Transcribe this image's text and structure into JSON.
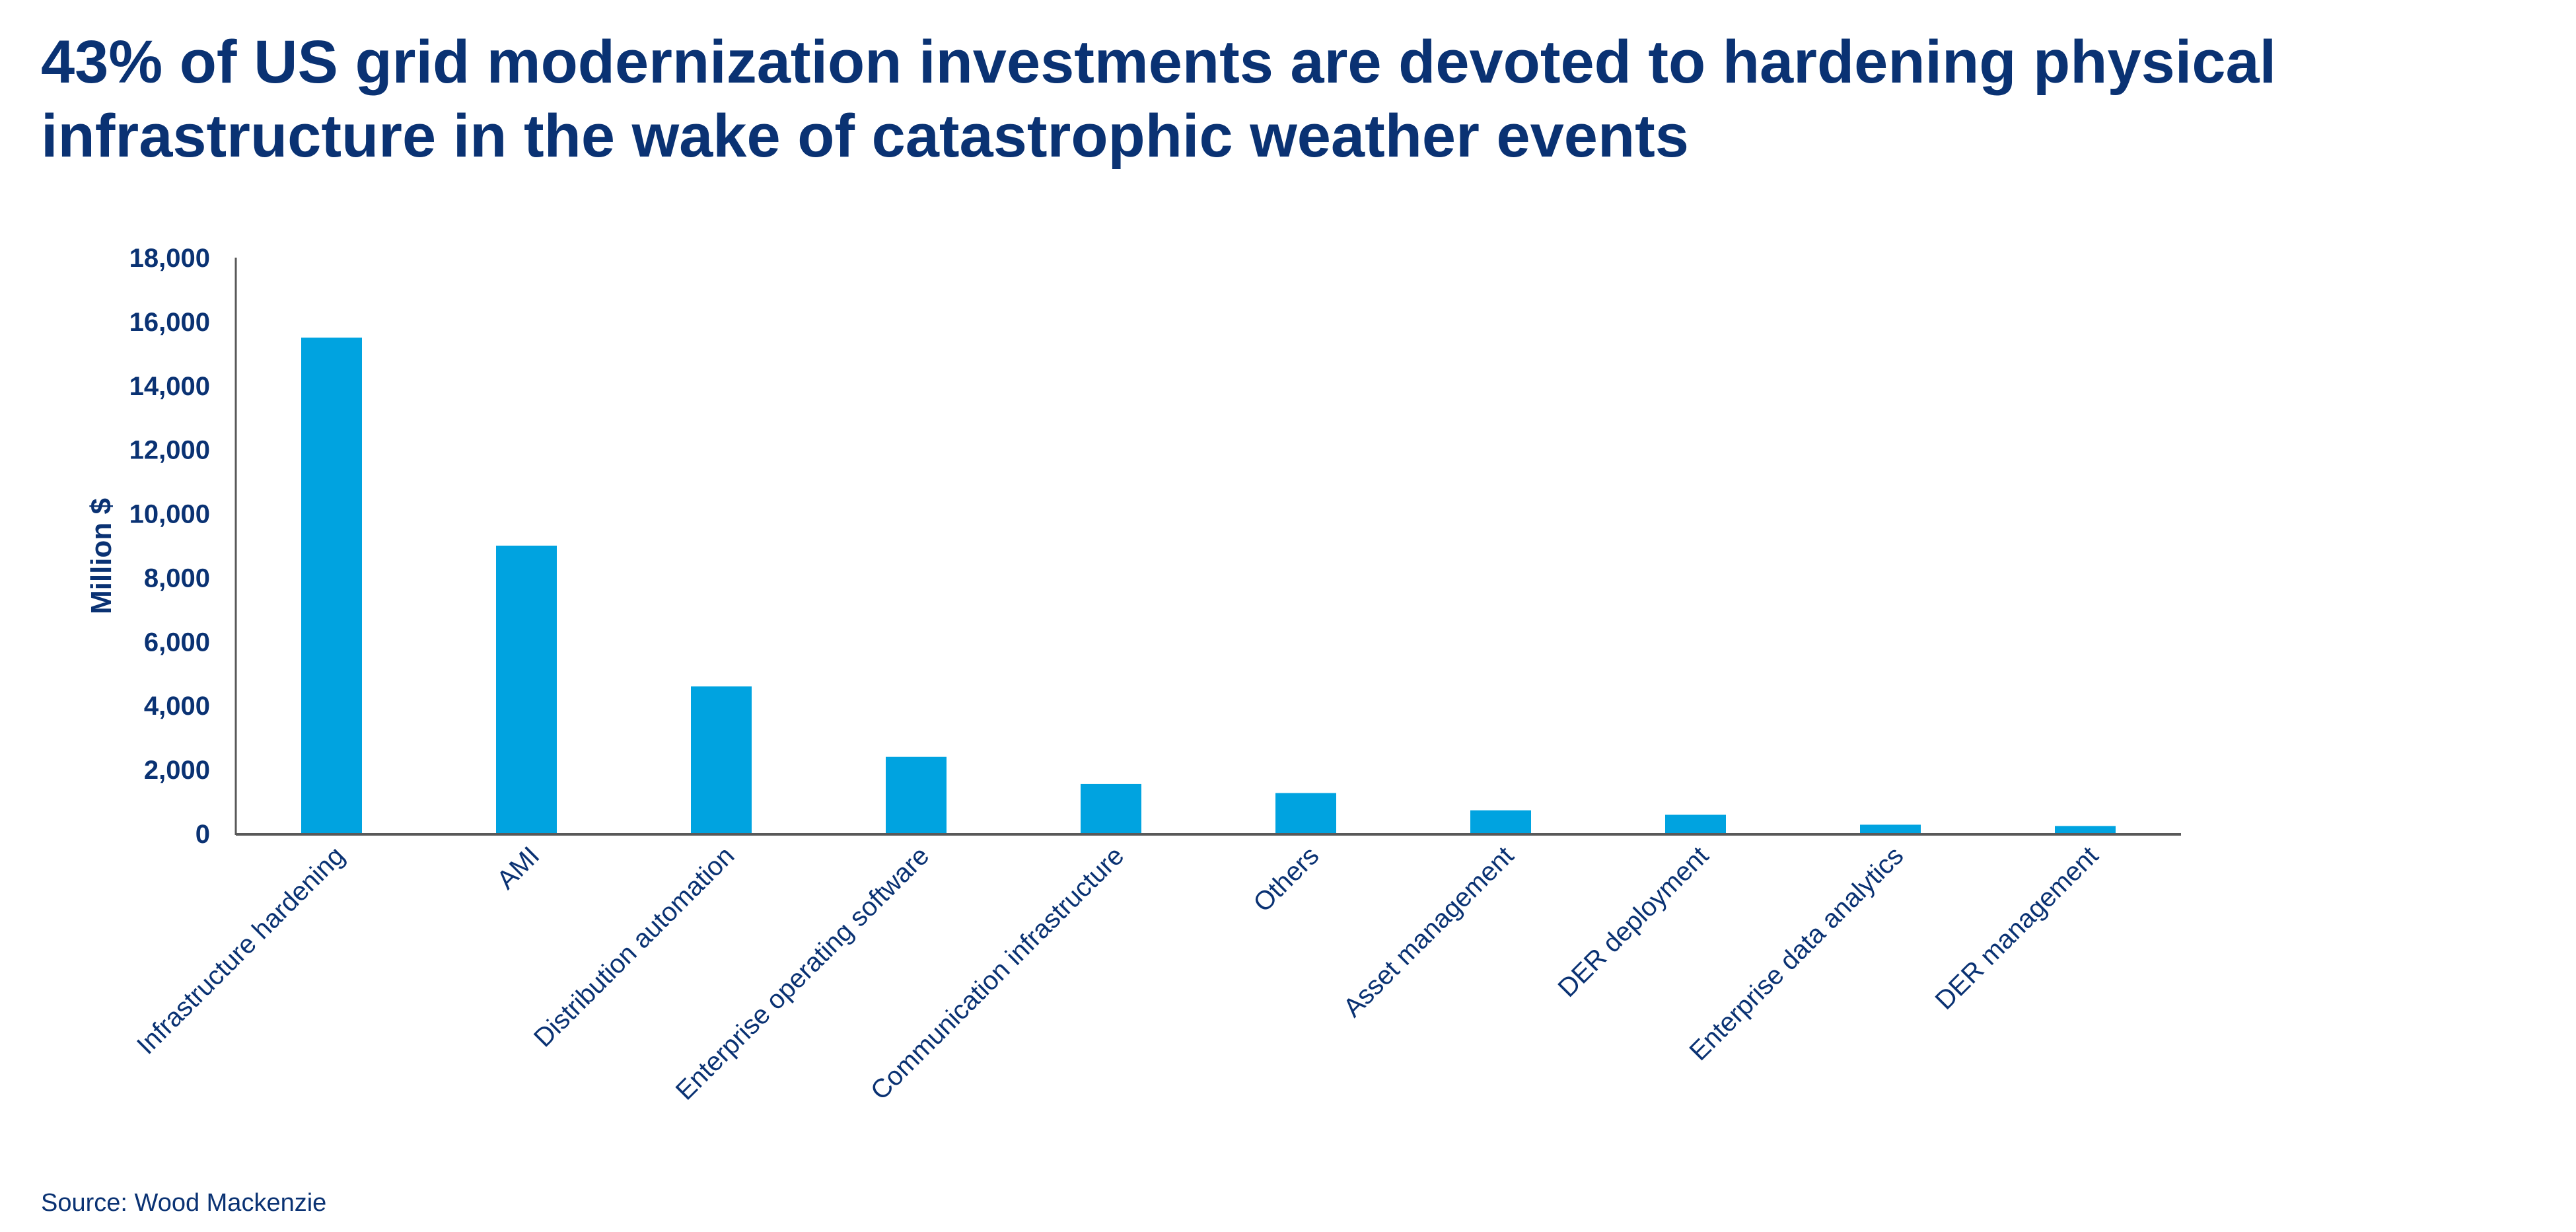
{
  "title": "43% of US grid modernization investments are devoted to hardening physical infrastructure in the wake of catastrophic weather events",
  "source": "Source: Wood Mackenzie",
  "chart_data": {
    "type": "bar",
    "title": "43% of US grid modernization investments are devoted to hardening physical infrastructure in the wake of catastrophic weather events",
    "xlabel": "",
    "ylabel": "Million $",
    "ylim": [
      0,
      18000
    ],
    "yticks": [
      0,
      2000,
      4000,
      6000,
      8000,
      10000,
      12000,
      14000,
      16000,
      18000
    ],
    "ytick_labels": [
      "0",
      "2,000",
      "4,000",
      "6,000",
      "8,000",
      "10,000",
      "12,000",
      "14,000",
      "16,000",
      "18,000"
    ],
    "grid": false,
    "legend": "none",
    "bar_color": "#00a3e0",
    "categories": [
      "Infrastructure hardening",
      "AMI",
      "Distribution automation",
      "Enterprise operating software",
      "Communication infrastructure",
      "Others",
      "Asset management",
      "DER deployment",
      "Enterprise data analytics",
      "DER management"
    ],
    "values": [
      15500,
      9000,
      4600,
      2400,
      1550,
      1270,
      730,
      590,
      280,
      240
    ]
  }
}
